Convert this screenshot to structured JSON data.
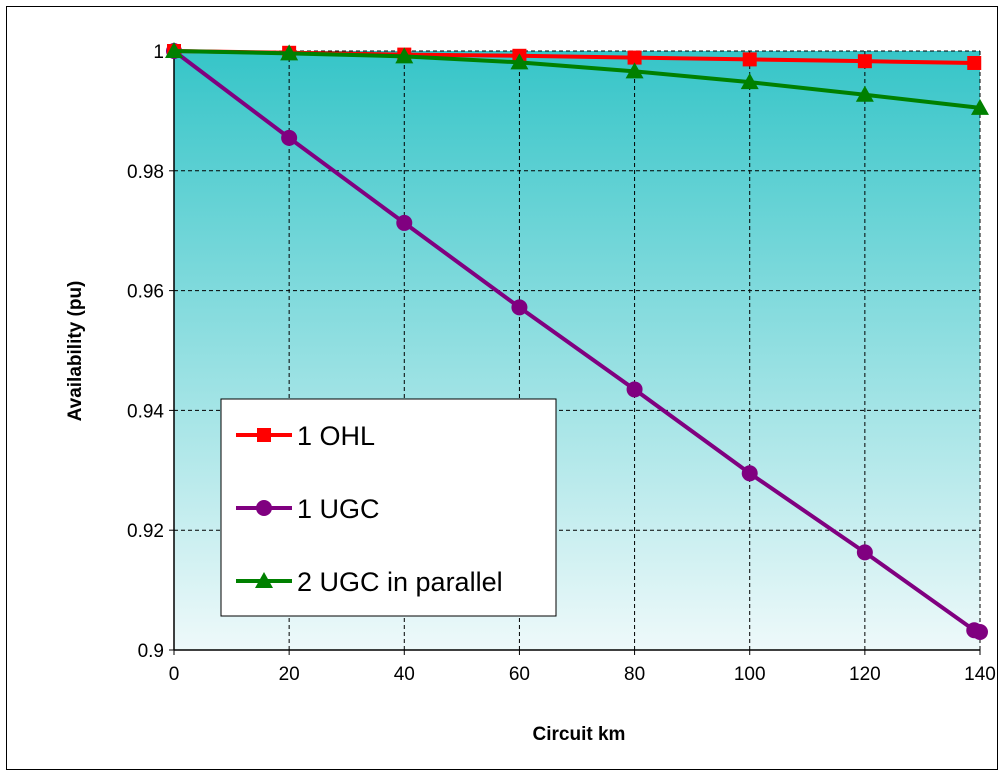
{
  "chart_data": {
    "type": "line",
    "title": "",
    "xlabel": "Circuit km",
    "ylabel": "Availability (pu)",
    "xlim": [
      0,
      140
    ],
    "ylim": [
      0.9,
      1.0
    ],
    "xticks": [
      "0",
      "20",
      "40",
      "60",
      "80",
      "100",
      "120",
      "140"
    ],
    "yticks": [
      "0.9",
      "0.92",
      "0.94",
      "0.96",
      "0.98",
      "1"
    ],
    "grid": true,
    "legend_position": "left-bottom",
    "background_gradient": [
      "#36c5c8",
      "#eef9fa"
    ],
    "series": [
      {
        "name": "1 OHL",
        "color": "#ff0000",
        "marker": "square",
        "x": [
          0,
          20,
          40,
          60,
          80,
          100,
          120,
          139
        ],
        "values": [
          1.0,
          0.9997,
          0.9994,
          0.9992,
          0.9989,
          0.9986,
          0.9983,
          0.998
        ]
      },
      {
        "name": "1 UGC",
        "color": "#800080",
        "marker": "circle",
        "x": [
          0,
          20,
          40,
          60,
          80,
          100,
          120,
          139,
          140
        ],
        "values": [
          1.0,
          0.9855,
          0.9713,
          0.9572,
          0.9435,
          0.9295,
          0.9163,
          0.9033,
          0.903
        ]
      },
      {
        "name": "2 UGC in parallel",
        "color": "#008000",
        "marker": "triangle",
        "x": [
          0,
          20,
          40,
          60,
          80,
          100,
          120,
          140
        ],
        "values": [
          1.0,
          0.9996,
          0.9991,
          0.9981,
          0.9966,
          0.9948,
          0.9927,
          0.9905
        ]
      }
    ]
  }
}
